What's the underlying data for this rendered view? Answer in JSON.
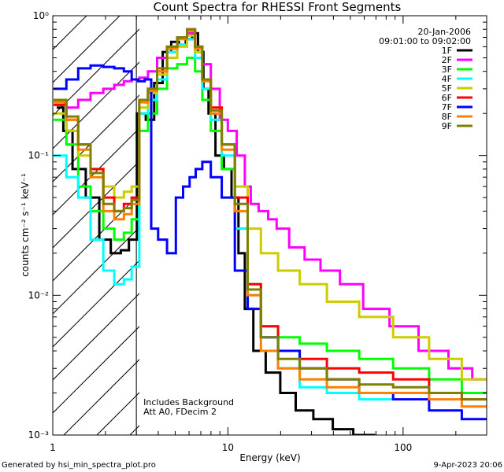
{
  "chart_data": {
    "type": "line",
    "title": "Count Spectra for RHESSI Front Segments",
    "xlabel": "Energy (keV)",
    "ylabel": "counts cm⁻² s⁻¹ keV⁻¹",
    "xscale": "log",
    "yscale": "log",
    "xlim": [
      1.0,
      300.0
    ],
    "ylim": [
      0.001,
      1.0
    ],
    "x_tick_labels": [
      "1",
      "10",
      "100"
    ],
    "y_tick_labels": [
      "10⁻³",
      "10⁻²",
      "10⁻¹",
      "10⁰"
    ],
    "date": "20-Jan-2006",
    "time_range": "09:01:00 to 09:02:00",
    "annotations": [
      "Includes Background",
      "Att A0, FDecim 2"
    ],
    "legend_placement": "top-right",
    "attenuator_edge_kev": 3.0,
    "shaded_region_kev": [
      1.0,
      3.0
    ],
    "series": [
      {
        "name": "1F",
        "color": "#000000",
        "points": [
          [
            1.1,
            0.22
          ],
          [
            1.2,
            0.15
          ],
          [
            1.4,
            0.08
          ],
          [
            1.7,
            0.05
          ],
          [
            2.0,
            0.025
          ],
          [
            2.3,
            0.02
          ],
          [
            2.6,
            0.021
          ],
          [
            2.85,
            0.025
          ],
          [
            3.2,
            0.2
          ],
          [
            3.6,
            0.18
          ],
          [
            4.0,
            0.33
          ],
          [
            4.5,
            0.55
          ],
          [
            5.0,
            0.65
          ],
          [
            5.5,
            0.62
          ],
          [
            6.0,
            0.68
          ],
          [
            6.5,
            0.75
          ],
          [
            7.0,
            0.55
          ],
          [
            7.5,
            0.3
          ],
          [
            8.0,
            0.2
          ],
          [
            9.0,
            0.1
          ],
          [
            10.0,
            0.08
          ],
          [
            11.0,
            0.05
          ],
          [
            12.0,
            0.02
          ],
          [
            13.0,
            0.008
          ],
          [
            15.0,
            0.004
          ],
          [
            18.0,
            0.0028
          ],
          [
            22.0,
            0.002
          ],
          [
            27.0,
            0.0015
          ],
          [
            35.0,
            0.0013
          ],
          [
            45.0,
            0.0011
          ],
          [
            60.0,
            0.001
          ]
        ]
      },
      {
        "name": "2F",
        "color": "#ff00ff",
        "points": [
          [
            1.1,
            0.24
          ],
          [
            1.3,
            0.22
          ],
          [
            1.5,
            0.25
          ],
          [
            1.8,
            0.28
          ],
          [
            2.1,
            0.3
          ],
          [
            2.4,
            0.32
          ],
          [
            2.7,
            0.34
          ],
          [
            2.95,
            0.35
          ],
          [
            3.3,
            0.36
          ],
          [
            3.7,
            0.4
          ],
          [
            4.2,
            0.5
          ],
          [
            4.8,
            0.6
          ],
          [
            5.5,
            0.7
          ],
          [
            6.2,
            0.75
          ],
          [
            6.8,
            0.6
          ],
          [
            7.5,
            0.45
          ],
          [
            8.5,
            0.3
          ],
          [
            9.5,
            0.18
          ],
          [
            10.5,
            0.15
          ],
          [
            12.0,
            0.1
          ],
          [
            13.0,
            0.06
          ],
          [
            14.0,
            0.045
          ],
          [
            16.0,
            0.04
          ],
          [
            18.0,
            0.035
          ],
          [
            20.0,
            0.03
          ],
          [
            25.0,
            0.022
          ],
          [
            30.0,
            0.018
          ],
          [
            38.0,
            0.015
          ],
          [
            50.0,
            0.012
          ],
          [
            70.0,
            0.008
          ],
          [
            100.0,
            0.006
          ],
          [
            150.0,
            0.004
          ],
          [
            220.0,
            0.003
          ],
          [
            280.0,
            0.0025
          ]
        ]
      },
      {
        "name": "3F",
        "color": "#00ff00",
        "points": [
          [
            1.1,
            0.18
          ],
          [
            1.3,
            0.12
          ],
          [
            1.5,
            0.06
          ],
          [
            1.8,
            0.04
          ],
          [
            2.1,
            0.03
          ],
          [
            2.4,
            0.025
          ],
          [
            2.7,
            0.028
          ],
          [
            2.95,
            0.035
          ],
          [
            3.3,
            0.15
          ],
          [
            3.7,
            0.2
          ],
          [
            4.2,
            0.3
          ],
          [
            4.8,
            0.42
          ],
          [
            5.5,
            0.45
          ],
          [
            6.2,
            0.5
          ],
          [
            6.8,
            0.4
          ],
          [
            7.5,
            0.25
          ],
          [
            8.5,
            0.15
          ],
          [
            10.0,
            0.08
          ],
          [
            12.0,
            0.03
          ],
          [
            14.0,
            0.012
          ],
          [
            17.0,
            0.006
          ],
          [
            22.0,
            0.005
          ],
          [
            30.0,
            0.0045
          ],
          [
            45.0,
            0.004
          ],
          [
            70.0,
            0.0035
          ],
          [
            110.0,
            0.003
          ],
          [
            180.0,
            0.0025
          ],
          [
            260.0,
            0.002
          ]
        ]
      },
      {
        "name": "4F",
        "color": "#00ffff",
        "points": [
          [
            1.1,
            0.1
          ],
          [
            1.3,
            0.07
          ],
          [
            1.5,
            0.05
          ],
          [
            1.8,
            0.025
          ],
          [
            2.1,
            0.015
          ],
          [
            2.4,
            0.012
          ],
          [
            2.7,
            0.013
          ],
          [
            2.95,
            0.016
          ],
          [
            3.3,
            0.2
          ],
          [
            3.7,
            0.25
          ],
          [
            4.2,
            0.35
          ],
          [
            4.8,
            0.55
          ],
          [
            5.5,
            0.62
          ],
          [
            6.2,
            0.68
          ],
          [
            6.8,
            0.5
          ],
          [
            7.5,
            0.3
          ],
          [
            8.5,
            0.18
          ],
          [
            10.0,
            0.1
          ],
          [
            12.0,
            0.03
          ],
          [
            14.0,
            0.01
          ],
          [
            17.0,
            0.005
          ],
          [
            22.0,
            0.003
          ],
          [
            30.0,
            0.0022
          ],
          [
            45.0,
            0.002
          ],
          [
            70.0,
            0.0018
          ]
        ]
      },
      {
        "name": "5F",
        "color": "#cccc00",
        "points": [
          [
            1.1,
            0.2
          ],
          [
            1.3,
            0.15
          ],
          [
            1.5,
            0.1
          ],
          [
            1.8,
            0.08
          ],
          [
            2.1,
            0.06
          ],
          [
            2.4,
            0.05
          ],
          [
            2.7,
            0.055
          ],
          [
            2.95,
            0.06
          ],
          [
            3.3,
            0.22
          ],
          [
            3.7,
            0.28
          ],
          [
            4.2,
            0.38
          ],
          [
            4.8,
            0.5
          ],
          [
            5.5,
            0.6
          ],
          [
            6.2,
            0.72
          ],
          [
            6.8,
            0.55
          ],
          [
            7.5,
            0.35
          ],
          [
            8.5,
            0.22
          ],
          [
            10.0,
            0.12
          ],
          [
            12.0,
            0.06
          ],
          [
            14.0,
            0.03
          ],
          [
            17.0,
            0.02
          ],
          [
            22.0,
            0.015
          ],
          [
            30.0,
            0.012
          ],
          [
            45.0,
            0.009
          ],
          [
            70.0,
            0.007
          ],
          [
            110.0,
            0.005
          ],
          [
            180.0,
            0.0035
          ],
          [
            260.0,
            0.0025
          ]
        ]
      },
      {
        "name": "6F",
        "color": "#ff0000",
        "points": [
          [
            1.1,
            0.23
          ],
          [
            1.3,
            0.18
          ],
          [
            1.5,
            0.12
          ],
          [
            1.8,
            0.08
          ],
          [
            2.1,
            0.05
          ],
          [
            2.4,
            0.04
          ],
          [
            2.7,
            0.045
          ],
          [
            2.95,
            0.05
          ],
          [
            3.3,
            0.25
          ],
          [
            3.7,
            0.3
          ],
          [
            4.2,
            0.4
          ],
          [
            4.8,
            0.6
          ],
          [
            5.5,
            0.7
          ],
          [
            6.2,
            0.8
          ],
          [
            6.8,
            0.6
          ],
          [
            7.5,
            0.35
          ],
          [
            8.5,
            0.22
          ],
          [
            10.0,
            0.12
          ],
          [
            12.0,
            0.05
          ],
          [
            14.0,
            0.012
          ],
          [
            17.0,
            0.006
          ],
          [
            22.0,
            0.004
          ],
          [
            30.0,
            0.0035
          ],
          [
            45.0,
            0.003
          ],
          [
            70.0,
            0.0028
          ],
          [
            110.0,
            0.0025
          ],
          [
            180.0,
            0.002
          ],
          [
            260.0,
            0.0018
          ]
        ]
      },
      {
        "name": "7F",
        "color": "#0000ff",
        "points": [
          [
            1.1,
            0.3
          ],
          [
            1.3,
            0.35
          ],
          [
            1.5,
            0.42
          ],
          [
            1.8,
            0.44
          ],
          [
            2.1,
            0.43
          ],
          [
            2.4,
            0.42
          ],
          [
            2.7,
            0.4
          ],
          [
            2.95,
            0.35
          ],
          [
            3.2,
            0.34
          ],
          [
            3.5,
            0.35
          ],
          [
            3.8,
            0.03
          ],
          [
            4.2,
            0.025
          ],
          [
            4.8,
            0.02
          ],
          [
            5.3,
            0.05
          ],
          [
            5.8,
            0.06
          ],
          [
            6.3,
            0.07
          ],
          [
            6.8,
            0.08
          ],
          [
            7.5,
            0.09
          ],
          [
            8.5,
            0.07
          ],
          [
            10.0,
            0.05
          ],
          [
            12.0,
            0.015
          ],
          [
            14.0,
            0.008
          ],
          [
            17.0,
            0.005
          ],
          [
            22.0,
            0.004
          ],
          [
            30.0,
            0.003
          ],
          [
            45.0,
            0.0025
          ],
          [
            70.0,
            0.002
          ],
          [
            110.0,
            0.0018
          ],
          [
            180.0,
            0.0015
          ],
          [
            260.0,
            0.0013
          ]
        ]
      },
      {
        "name": "8F",
        "color": "#ff8000",
        "points": [
          [
            1.1,
            0.24
          ],
          [
            1.3,
            0.18
          ],
          [
            1.5,
            0.11
          ],
          [
            1.8,
            0.07
          ],
          [
            2.1,
            0.04
          ],
          [
            2.4,
            0.035
          ],
          [
            2.7,
            0.038
          ],
          [
            2.95,
            0.045
          ],
          [
            3.3,
            0.24
          ],
          [
            3.7,
            0.29
          ],
          [
            4.2,
            0.4
          ],
          [
            4.8,
            0.58
          ],
          [
            5.5,
            0.68
          ],
          [
            6.2,
            0.78
          ],
          [
            6.8,
            0.58
          ],
          [
            7.5,
            0.34
          ],
          [
            8.5,
            0.2
          ],
          [
            10.0,
            0.11
          ],
          [
            12.0,
            0.04
          ],
          [
            14.0,
            0.01
          ],
          [
            17.0,
            0.004
          ],
          [
            22.0,
            0.003
          ],
          [
            30.0,
            0.0025
          ],
          [
            45.0,
            0.0022
          ],
          [
            70.0,
            0.002
          ],
          [
            110.0,
            0.002
          ],
          [
            180.0,
            0.0018
          ],
          [
            260.0,
            0.0016
          ]
        ]
      },
      {
        "name": "9F",
        "color": "#808000",
        "points": [
          [
            1.1,
            0.25
          ],
          [
            1.3,
            0.19
          ],
          [
            1.5,
            0.12
          ],
          [
            1.8,
            0.075
          ],
          [
            2.1,
            0.045
          ],
          [
            2.4,
            0.04
          ],
          [
            2.7,
            0.042
          ],
          [
            2.95,
            0.048
          ],
          [
            3.3,
            0.25
          ],
          [
            3.7,
            0.3
          ],
          [
            4.2,
            0.42
          ],
          [
            4.8,
            0.6
          ],
          [
            5.5,
            0.7
          ],
          [
            6.2,
            0.8
          ],
          [
            6.8,
            0.6
          ],
          [
            7.5,
            0.35
          ],
          [
            8.5,
            0.21
          ],
          [
            10.0,
            0.12
          ],
          [
            12.0,
            0.045
          ],
          [
            14.0,
            0.011
          ],
          [
            17.0,
            0.005
          ],
          [
            22.0,
            0.0035
          ],
          [
            30.0,
            0.003
          ],
          [
            45.0,
            0.0025
          ],
          [
            70.0,
            0.0023
          ],
          [
            110.0,
            0.0022
          ],
          [
            180.0,
            0.002
          ],
          [
            260.0,
            0.0018
          ]
        ]
      }
    ]
  },
  "footer": {
    "left": "Generated by hsi_min_spectra_plot.pro",
    "right": "9-Apr-2023 20:06"
  }
}
